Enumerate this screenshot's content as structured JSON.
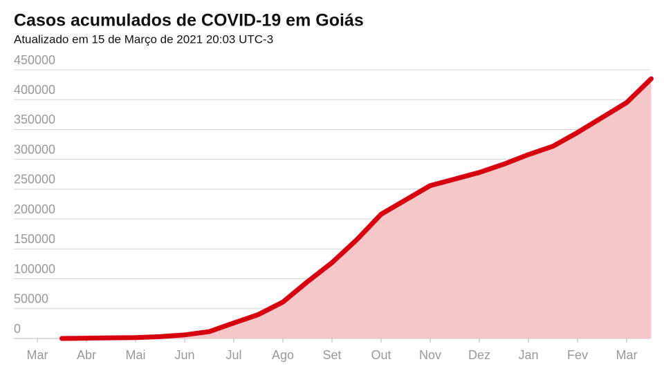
{
  "chart_data": {
    "type": "area",
    "title": "Casos acumulados de COVID-19 em Goiás",
    "subtitle": "Atualizado em 15 de Março de 2021 20:03 UTC-3",
    "categories": [
      "Mar",
      null,
      "Abr",
      null,
      "Mai",
      null,
      "Jun",
      null,
      "Jul",
      null,
      "Ago",
      null,
      "Set",
      null,
      "Out",
      null,
      "Nov",
      null,
      "Dez",
      null,
      "Jan",
      null,
      "Fev",
      null,
      "Mar",
      null
    ],
    "values": [
      null,
      0,
      500,
      1000,
      1500,
      3000,
      6000,
      11500,
      26000,
      40000,
      61000,
      95000,
      127000,
      165000,
      208000,
      232000,
      256000,
      267000,
      278000,
      292000,
      308000,
      322000,
      345000,
      370000,
      395000,
      435000
    ],
    "color": "#d7000f",
    "area_color": "#f6c7c9",
    "ylim": [
      0,
      450000
    ],
    "yticks": [
      0,
      50000,
      100000,
      150000,
      200000,
      250000,
      300000,
      350000,
      400000,
      450000
    ],
    "grid": true
  }
}
